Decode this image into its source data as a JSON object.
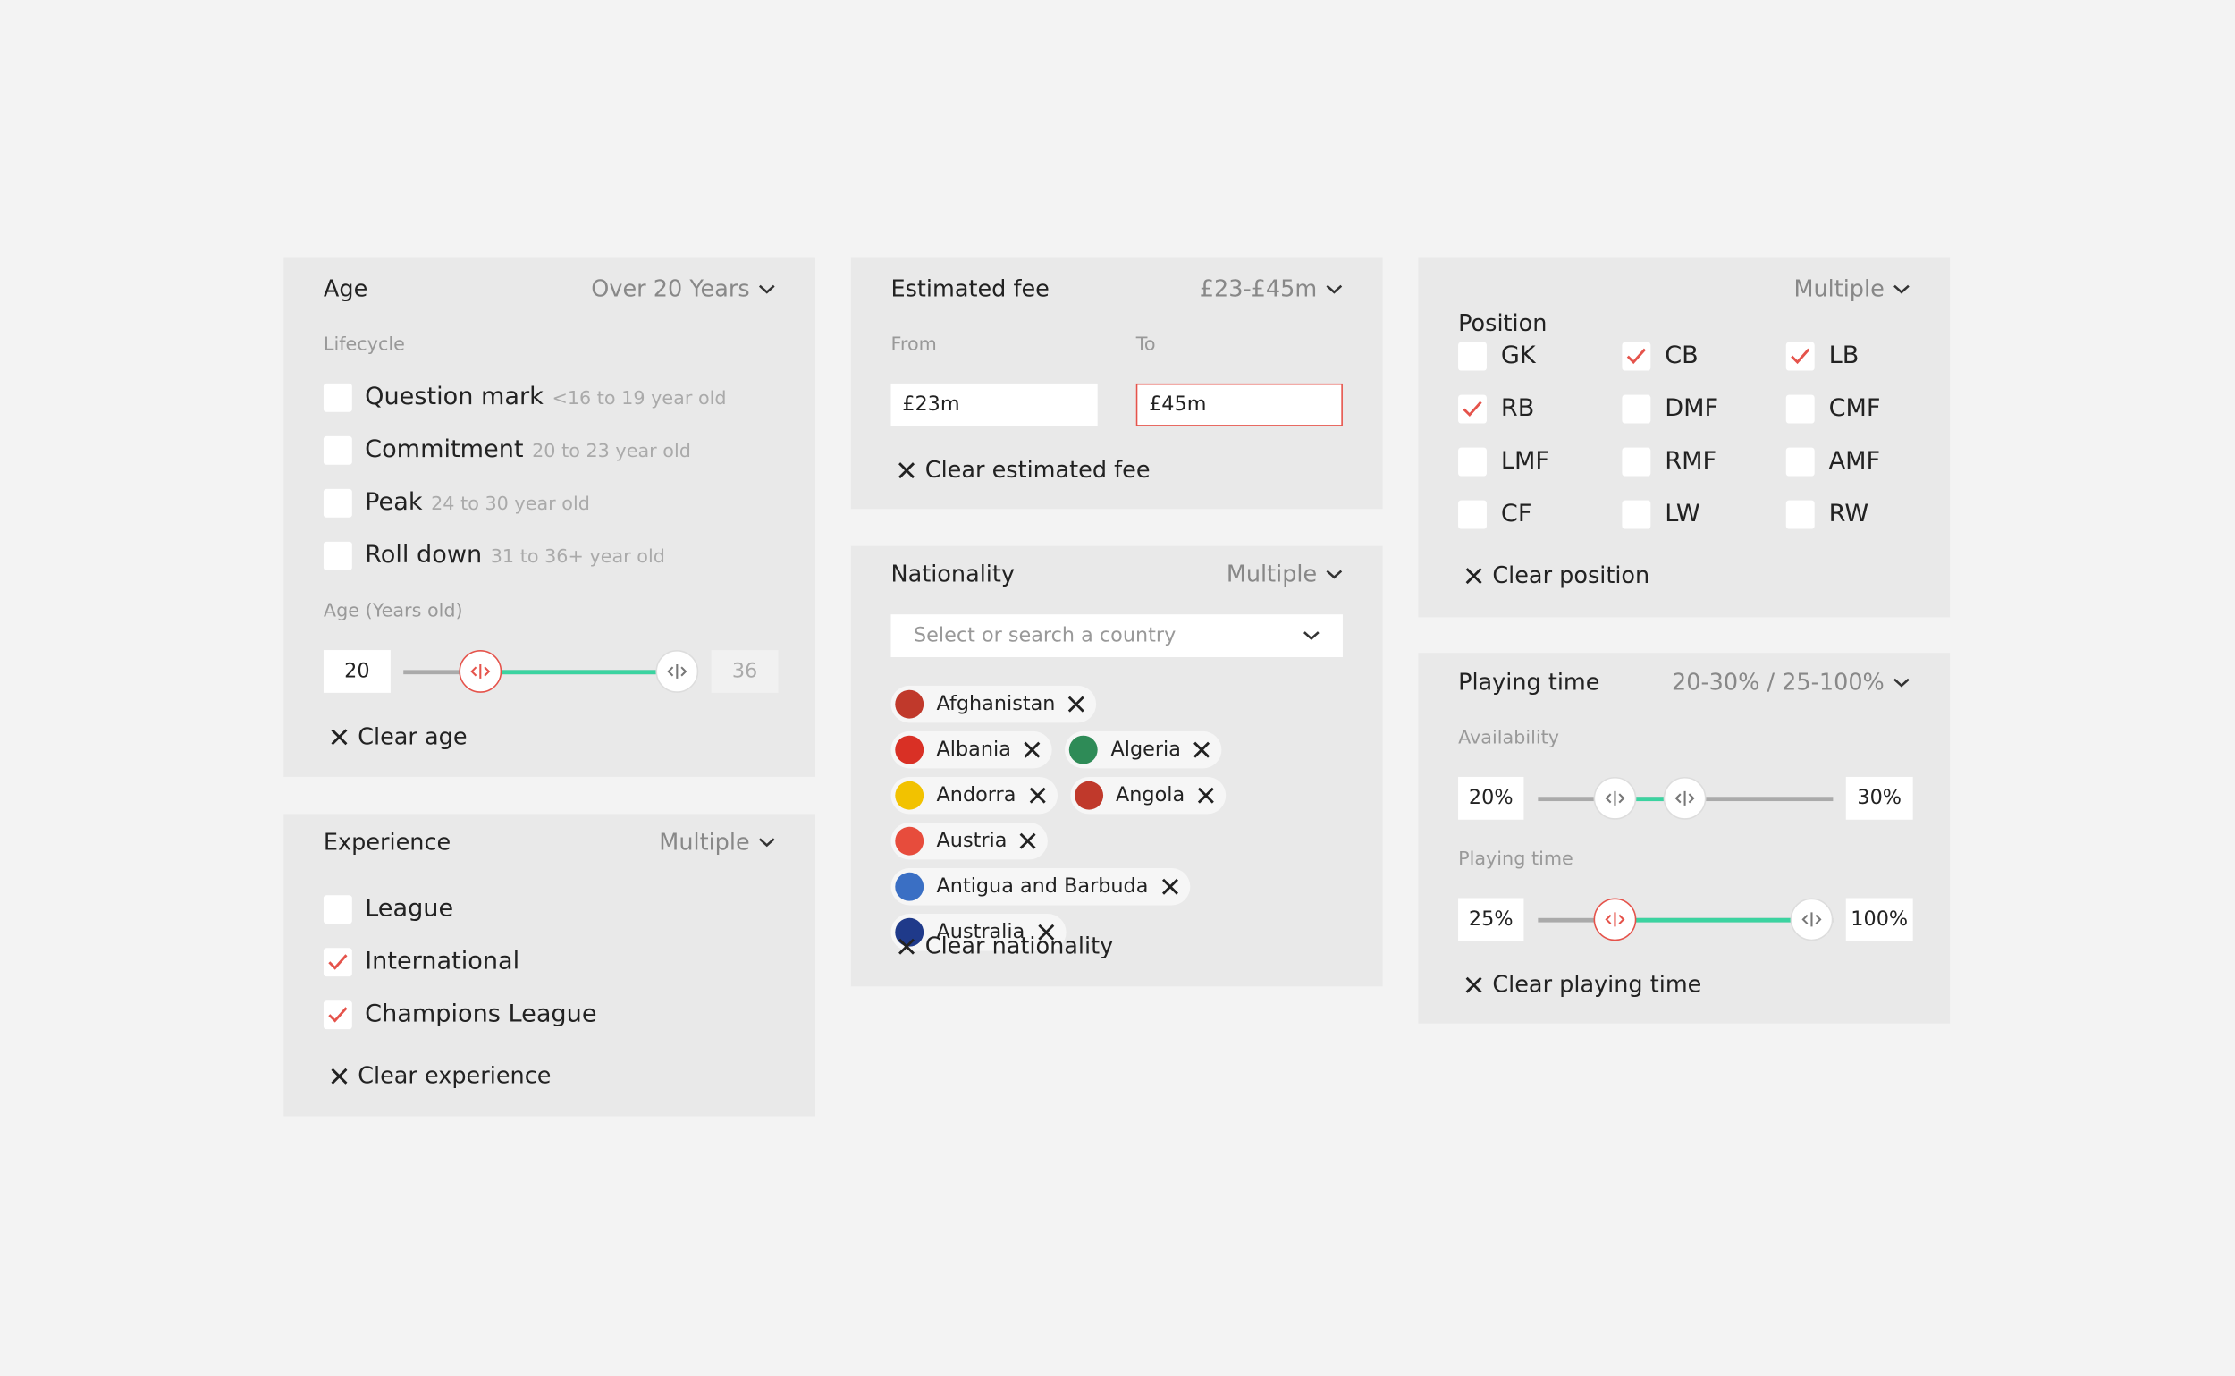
{
  "age": {
    "title": "Age",
    "summary": "Over 20 Years",
    "section": "Lifecycle",
    "options": [
      {
        "label": "Question mark",
        "hint": "<16 to 19 year old",
        "checked": false
      },
      {
        "label": "Commitment",
        "hint": "20 to 23 year old",
        "checked": false
      },
      {
        "label": "Peak",
        "hint": "24 to 30 year old",
        "checked": false
      },
      {
        "label": "Roll down",
        "hint": "31 to 36+ year old",
        "checked": false
      }
    ],
    "range_label": "Age (Years old)",
    "from": "20",
    "to": "36",
    "clear": "Clear age"
  },
  "experience": {
    "title": "Experience",
    "summary": "Multiple",
    "options": [
      {
        "label": "League",
        "checked": false
      },
      {
        "label": "International",
        "checked": true
      },
      {
        "label": "Champions League",
        "checked": true
      }
    ],
    "clear": "Clear experience"
  },
  "fee": {
    "title": "Estimated fee",
    "summary": "£23-£45m",
    "from_label": "From",
    "to_label": "To",
    "from": "£23m",
    "to": "£45m",
    "clear": "Clear estimated fee"
  },
  "nationality": {
    "title": "Nationality",
    "summary": "Multiple",
    "placeholder": "Select or search a country",
    "chips": [
      "Afghanistan",
      "Albania",
      "Algeria",
      "Andorra",
      "Angola",
      "Austria",
      "Antigua and Barbuda",
      "Australia"
    ],
    "clear": "Clear nationality"
  },
  "position": {
    "title": "Position",
    "summary": "Multiple",
    "options": [
      {
        "label": "GK",
        "checked": false
      },
      {
        "label": "CB",
        "checked": true
      },
      {
        "label": "LB",
        "checked": true
      },
      {
        "label": "RB",
        "checked": true
      },
      {
        "label": "DMF",
        "checked": false
      },
      {
        "label": "CMF",
        "checked": false
      },
      {
        "label": "LMF",
        "checked": false
      },
      {
        "label": "RMF",
        "checked": false
      },
      {
        "label": "AMF",
        "checked": false
      },
      {
        "label": "CF",
        "checked": false
      },
      {
        "label": "LW",
        "checked": false
      },
      {
        "label": "RW",
        "checked": false
      }
    ],
    "clear": "Clear position"
  },
  "playing_time": {
    "title": "Playing time",
    "summary": "20-30% / 25-100%",
    "sliders": [
      {
        "label": "Availability",
        "from": "20%",
        "to": "30%"
      },
      {
        "label": "Playing time",
        "from": "25%",
        "to": "100%"
      }
    ],
    "clear": "Clear playing time"
  }
}
